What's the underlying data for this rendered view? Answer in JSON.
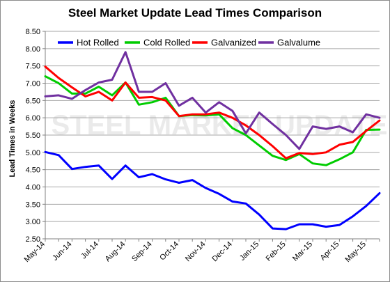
{
  "chart_data": {
    "type": "line",
    "title": "Steel Market Update Lead Times Comparison",
    "ylabel": "Lead Times in Weeks",
    "xlabel": "",
    "ylim": [
      2.5,
      8.5
    ],
    "ytick_step": 0.5,
    "grid": "horizontal",
    "legend_position": "top",
    "watermark": "STEEL MARKET UPDATE",
    "x_tick_labels": [
      "May-14",
      "Jun-14",
      "Jul-14",
      "Aug-14",
      "Sep-14",
      "Oct-14",
      "Nov-14",
      "Dec-14",
      "Jan-15",
      "Feb-15",
      "Mar-15",
      "Apr-15",
      "May-15"
    ],
    "x_tick_positions": [
      0,
      2,
      4,
      6,
      8,
      10,
      12,
      14,
      16,
      18,
      20,
      22,
      24
    ],
    "x_max": 25,
    "series": [
      {
        "name": "Hot Rolled",
        "color": "#0000ff",
        "values": [
          5.01,
          4.92,
          4.52,
          4.58,
          4.62,
          4.23,
          4.62,
          4.28,
          4.37,
          4.22,
          4.12,
          4.2,
          3.97,
          3.8,
          3.58,
          3.52,
          3.2,
          2.8,
          2.78,
          2.92,
          2.92,
          2.85,
          2.9,
          3.15,
          3.45,
          3.82
        ]
      },
      {
        "name": "Cold Rolled",
        "color": "#00cc00",
        "values": [
          7.2,
          7.0,
          6.7,
          6.7,
          6.9,
          6.65,
          7.02,
          6.38,
          6.45,
          6.58,
          6.05,
          6.08,
          6.07,
          6.1,
          5.7,
          5.5,
          5.2,
          4.9,
          4.78,
          4.95,
          4.68,
          4.63,
          4.8,
          5.0,
          5.65,
          5.66
        ]
      },
      {
        "name": "Galvanized",
        "color": "#ff0000",
        "values": [
          7.48,
          7.15,
          6.88,
          6.62,
          6.75,
          6.5,
          7.02,
          6.58,
          6.6,
          6.5,
          6.05,
          6.1,
          6.1,
          6.15,
          6.0,
          5.78,
          5.5,
          5.18,
          4.83,
          4.98,
          4.95,
          5.0,
          5.22,
          5.3,
          5.62,
          5.92
        ]
      },
      {
        "name": "Galvalume",
        "color": "#7030a0",
        "values": [
          6.62,
          6.65,
          6.55,
          6.8,
          7.02,
          7.1,
          7.9,
          6.75,
          6.75,
          7.0,
          6.35,
          6.58,
          6.15,
          6.45,
          6.2,
          5.55,
          6.15,
          5.82,
          5.5,
          5.1,
          5.75,
          5.68,
          5.75,
          5.58,
          6.1,
          6.0
        ]
      }
    ]
  }
}
